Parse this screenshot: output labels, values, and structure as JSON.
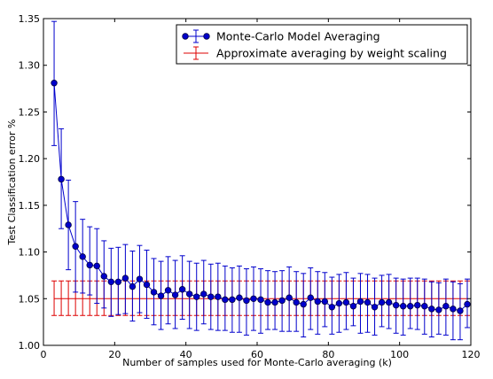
{
  "chart_data": {
    "type": "line",
    "xlabel": "Number of samples used for Monte-Carlo averaging (k)",
    "ylabel": "Test Classification error %",
    "xlim": [
      0,
      120
    ],
    "ylim": [
      1.0,
      1.35
    ],
    "x_ticks": [
      0,
      20,
      40,
      60,
      80,
      100,
      120
    ],
    "y_ticks": [
      1.0,
      1.05,
      1.1,
      1.15,
      1.2,
      1.25,
      1.3,
      1.35
    ],
    "x_tick_labels": [
      "0",
      "20",
      "40",
      "60",
      "80",
      "100",
      "120"
    ],
    "y_tick_labels": [
      "1.00",
      "1.05",
      "1.10",
      "1.15",
      "1.20",
      "1.25",
      "1.30",
      "1.35"
    ],
    "legend_position": "top-right",
    "grid": false,
    "series": [
      {
        "name": "Monte-Carlo Model Averaging",
        "color": "#0000cc",
        "marker": "circle",
        "x": [
          3,
          5,
          7,
          9,
          11,
          13,
          15,
          17,
          19,
          21,
          23,
          25,
          27,
          29,
          31,
          33,
          35,
          37,
          39,
          41,
          43,
          45,
          47,
          49,
          51,
          53,
          55,
          57,
          59,
          61,
          63,
          65,
          67,
          69,
          71,
          73,
          75,
          77,
          79,
          81,
          83,
          85,
          87,
          89,
          91,
          93,
          95,
          97,
          99,
          101,
          103,
          105,
          107,
          109,
          111,
          113,
          115,
          117,
          119
        ],
        "y": [
          1.281,
          1.178,
          1.129,
          1.106,
          1.095,
          1.086,
          1.085,
          1.074,
          1.068,
          1.068,
          1.072,
          1.063,
          1.071,
          1.065,
          1.057,
          1.053,
          1.059,
          1.054,
          1.06,
          1.055,
          1.052,
          1.055,
          1.052,
          1.052,
          1.049,
          1.049,
          1.051,
          1.048,
          1.05,
          1.049,
          1.046,
          1.046,
          1.048,
          1.051,
          1.046,
          1.044,
          1.051,
          1.047,
          1.047,
          1.041,
          1.045,
          1.046,
          1.042,
          1.047,
          1.046,
          1.041,
          1.046,
          1.046,
          1.043,
          1.042,
          1.042,
          1.043,
          1.042,
          1.039,
          1.038,
          1.042,
          1.039,
          1.037,
          1.044
        ],
        "err_low": [
          1.214,
          1.125,
          1.081,
          1.057,
          1.056,
          1.054,
          1.045,
          1.04,
          1.031,
          1.033,
          1.034,
          1.026,
          1.035,
          1.029,
          1.022,
          1.017,
          1.023,
          1.018,
          1.028,
          1.018,
          1.016,
          1.023,
          1.017,
          1.016,
          1.016,
          1.014,
          1.014,
          1.011,
          1.016,
          1.013,
          1.017,
          1.017,
          1.015,
          1.015,
          1.015,
          1.009,
          1.017,
          1.012,
          1.02,
          1.012,
          1.014,
          1.017,
          1.021,
          1.013,
          1.014,
          1.011,
          1.02,
          1.018,
          1.013,
          1.011,
          1.018,
          1.017,
          1.012,
          1.009,
          1.012,
          1.011,
          1.006,
          1.006,
          1.019
        ],
        "err_high": [
          1.347,
          1.232,
          1.177,
          1.154,
          1.135,
          1.127,
          1.125,
          1.112,
          1.104,
          1.105,
          1.108,
          1.101,
          1.107,
          1.102,
          1.093,
          1.09,
          1.095,
          1.091,
          1.096,
          1.09,
          1.088,
          1.091,
          1.087,
          1.088,
          1.085,
          1.083,
          1.085,
          1.082,
          1.084,
          1.082,
          1.08,
          1.079,
          1.08,
          1.084,
          1.079,
          1.077,
          1.083,
          1.079,
          1.078,
          1.073,
          1.076,
          1.078,
          1.072,
          1.077,
          1.076,
          1.072,
          1.075,
          1.076,
          1.072,
          1.071,
          1.072,
          1.072,
          1.071,
          1.068,
          1.067,
          1.071,
          1.068,
          1.066,
          1.071
        ]
      },
      {
        "name": "Approximate averaging by weight scaling",
        "color": "#dd0000",
        "marker": "none",
        "x": [
          3,
          5,
          7,
          9,
          11,
          13,
          15,
          17,
          19,
          21,
          23,
          25,
          27,
          29,
          31,
          33,
          35,
          37,
          39,
          41,
          43,
          45,
          47,
          49,
          51,
          53,
          55,
          57,
          59,
          61,
          63,
          65,
          67,
          69,
          71,
          73,
          75,
          77,
          79,
          81,
          83,
          85,
          87,
          89,
          91,
          93,
          95,
          97,
          99,
          101,
          103,
          105,
          107,
          109,
          111,
          113,
          115,
          117,
          119
        ],
        "value": 1.05,
        "err_low": 1.032,
        "err_high": 1.069
      }
    ]
  }
}
